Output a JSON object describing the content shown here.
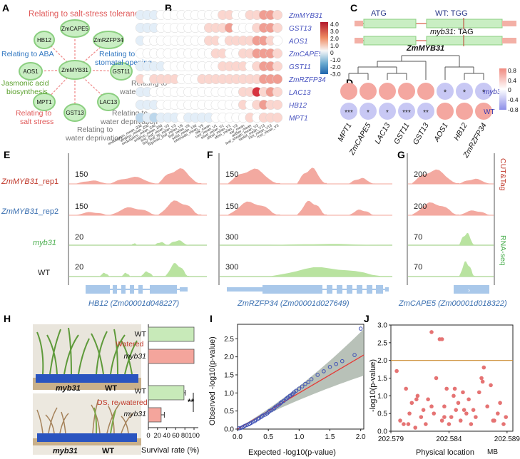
{
  "panels": {
    "A": "A",
    "B": "B",
    "C": "C",
    "D": "D",
    "E": "E",
    "F": "F",
    "G": "G",
    "H": "H",
    "I": "I",
    "J": "J"
  },
  "panelA": {
    "center": "ZmMYB31",
    "nodes": [
      "ZmCAPE5",
      "ZmRZFP34",
      "GST11",
      "LAC13",
      "GST13",
      "MPT1",
      "AOS1",
      "HB12"
    ],
    "labels": {
      "salt_tolerance": "Relating to salt-stress tolerance",
      "aba": "Relating to ABA",
      "aba_stomatal_1": "Relating to ABA,",
      "aba_stomatal_2": "stomatal opening",
      "ja_1": "Jasmonic acid",
      "ja_2": "biosynthesis",
      "water1_1": "Relating to",
      "water1_2": "water deprivation",
      "salt_stress_1": "Relating to",
      "salt_stress_2": "salt stress",
      "water2_1": "Relating to",
      "water2_2": "water deprivation",
      "water3_1": "Relating to",
      "water3_2": "water deprivation"
    }
  },
  "panelB": {
    "genes": [
      "ZmMYB31",
      "GST13",
      "AOS1",
      "ZmCAPE5",
      "GST11",
      "ZmRZFP34",
      "LAC13",
      "HB12",
      "MPT1"
    ],
    "tissues": [
      "endosperm_mean_20d",
      "embryo_mean_20d",
      "endosperm_mean_24d",
      "embryo_mean_24d",
      "first_leaf_mean_V3",
      "first_leaf_tip_mean_V3",
      "Topmost_leaf_mean_V9",
      "leaf_mean_V9",
      "seed_mean_14d",
      "internode_mean_V9",
      "silk_mean",
      "root_mean_V1",
      "seed_mean_V1",
      "shoot_mean_V1",
      "stem_mean_V3",
      "ear_mean",
      "anther_mean",
      "leaf_sheath_mean_V3",
      "tassel_mean_V13",
      "root_mean_V13",
      "root_mean_V3"
    ],
    "legend": {
      "ticks": [
        "4.0",
        "3.0",
        "2.0",
        "1.0",
        "0",
        "-1.0",
        "-2.0",
        "-3.0"
      ]
    }
  },
  "panelC": {
    "atg": "ATG",
    "wt_label": "WT: TGG",
    "mut_label": "myb31",
    "mut_suffix": ": TAG",
    "gene": "ZmMYB31"
  },
  "panelD": {
    "genes": [
      "MPT1",
      "ZmCAPE5",
      "LAC13",
      "GST11",
      "GST13",
      "AOS1",
      "HB12",
      "ZmRZFP34"
    ],
    "row_labels": [
      "myb31",
      "WT"
    ],
    "myb31_marks": [
      "",
      "",
      "",
      "",
      "",
      "*",
      "*",
      "*"
    ],
    "wt_marks": [
      "***",
      "*",
      "*",
      "***",
      "**",
      "",
      "",
      ""
    ],
    "legend_ticks": [
      "0.8",
      "0.4",
      "0",
      "-0.4",
      "-0.8"
    ]
  },
  "tracks": {
    "rows": [
      {
        "label_main": "ZmMYB31",
        "label_suffix": "_rep1",
        "color": "#c0392b"
      },
      {
        "label_main": "ZmMYB31",
        "label_suffix": "_rep2",
        "color": "#3a6fb0"
      },
      {
        "label_main": "myb31",
        "label_suffix": "",
        "color": "#4caf50"
      },
      {
        "label_main": "",
        "label_suffix": "WT",
        "color": "#222"
      }
    ],
    "E": {
      "scales": [
        "150",
        "150",
        "20",
        "20"
      ],
      "gene": "HB12 (Zm00001d048227)"
    },
    "F": {
      "scales": [
        "150",
        "150",
        "300",
        "300"
      ],
      "gene": "ZmRZFP34 (Zm00001d027649)"
    },
    "G": {
      "scales": [
        "200",
        "200",
        "70",
        "70"
      ],
      "gene": "ZmCAPE5 (Zm00001d018322)"
    },
    "side_cut": "CUT&Tag",
    "side_rna": "RNA-seq"
  },
  "panelH": {
    "photo_labels": [
      "myb31",
      "WT",
      "myb31",
      "WT"
    ],
    "bar_labels": [
      "WT",
      "myb31",
      "WT",
      "myb31"
    ],
    "group_labels": [
      "Watered",
      "DS, re-watered"
    ],
    "xlabel": "Survival rate (%)",
    "xticks": [
      "0",
      "20",
      "40",
      "60",
      "80",
      "100"
    ],
    "sig": "**"
  },
  "chart_data": [
    {
      "type": "bar",
      "title": "",
      "categories": [
        "WT (Watered)",
        "myb31 (Watered)",
        "WT (DS, re-watered)",
        "myb31 (DS, re-watered)"
      ],
      "values": [
        100,
        100,
        78,
        28
      ],
      "errors": [
        0,
        0,
        3,
        7
      ],
      "xlabel": "Survival rate (%)",
      "ylabel": "",
      "xlim": [
        0,
        100
      ]
    },
    {
      "type": "scatter",
      "title": "",
      "xlabel": "Expected -log10(p-value)",
      "ylabel": "Observed -log10(p-value)",
      "xlim": [
        0,
        2.05
      ],
      "ylim": [
        0,
        2.9
      ],
      "xticks": [
        "0.0",
        "0.5",
        "1.0",
        "1.5",
        "2.0"
      ],
      "yticks": [
        "0.0",
        "0.5",
        "1.0",
        "1.5",
        "2.0",
        "2.5"
      ],
      "expected": [
        0.02,
        0.05,
        0.08,
        0.1,
        0.12,
        0.15,
        0.18,
        0.2,
        0.22,
        0.25,
        0.28,
        0.3,
        0.33,
        0.35,
        0.38,
        0.4,
        0.42,
        0.45,
        0.48,
        0.5,
        0.52,
        0.55,
        0.58,
        0.6,
        0.62,
        0.65,
        0.68,
        0.7,
        0.72,
        0.75,
        0.78,
        0.8,
        0.82,
        0.85,
        0.88,
        0.9,
        0.92,
        0.95,
        1.0,
        1.05,
        1.1,
        1.15,
        1.2,
        1.3,
        1.4,
        1.5,
        1.6,
        1.7,
        1.9,
        2.0
      ],
      "observed": [
        0.02,
        0.03,
        0.05,
        0.07,
        0.09,
        0.11,
        0.13,
        0.15,
        0.17,
        0.2,
        0.22,
        0.25,
        0.28,
        0.3,
        0.33,
        0.36,
        0.38,
        0.4,
        0.43,
        0.46,
        0.5,
        0.52,
        0.55,
        0.58,
        0.62,
        0.65,
        0.68,
        0.72,
        0.75,
        0.78,
        0.82,
        0.85,
        0.88,
        0.92,
        0.95,
        0.98,
        1.02,
        1.06,
        1.12,
        1.18,
        1.25,
        1.3,
        1.38,
        1.5,
        1.6,
        1.72,
        1.8,
        1.88,
        2.05,
        2.78
      ],
      "fit_line": {
        "x": [
          0,
          2.05
        ],
        "y": [
          0,
          2.05
        ]
      }
    },
    {
      "type": "scatter",
      "title": "",
      "xlabel": "Physical location",
      "xunit": "MB",
      "ylabel": "-log10(p-value)",
      "xlim": [
        202.579,
        202.5895
      ],
      "ylim": [
        0,
        3.0
      ],
      "xticks": [
        "202.579",
        "202.584",
        "202.589"
      ],
      "yticks": [
        "0.0",
        "0.5",
        "1.0",
        "1.5",
        "2.0",
        "2.5",
        "3.0"
      ],
      "threshold": 2.0,
      "x": [
        202.5795,
        202.5798,
        202.5801,
        202.5803,
        202.5806,
        202.5808,
        202.5811,
        202.5813,
        202.5816,
        202.5818,
        202.582,
        202.5822,
        202.5825,
        202.5827,
        202.5829,
        202.5832,
        202.5834,
        202.5836,
        202.5838,
        202.584,
        202.5842,
        202.5844,
        202.5846,
        202.5848,
        202.585,
        202.5852,
        202.5855,
        202.5857,
        202.5859,
        202.5861,
        202.5863,
        202.5866,
        202.5868,
        202.587,
        202.5873,
        202.5876,
        202.5879,
        202.5882,
        202.5884,
        202.5887,
        202.5889,
        202.5834,
        202.5836,
        202.5812,
        202.5869,
        202.5853,
        202.5825,
        202.5805,
        202.5845,
        202.5878
      ],
      "y": [
        1.7,
        0.3,
        0.2,
        1.2,
        0.5,
        0.8,
        0.1,
        1.0,
        0.4,
        0.6,
        0.2,
        0.9,
        2.8,
        0.5,
        1.5,
        2.6,
        0.3,
        0.7,
        1.2,
        0.2,
        0.4,
        1.0,
        0.6,
        0.8,
        0.3,
        1.1,
        0.5,
        0.9,
        0.2,
        0.6,
        0.4,
        1.1,
        1.5,
        1.8,
        0.7,
        1.3,
        0.3,
        0.5,
        0.8,
        0.2,
        0.4,
        2.6,
        0.4,
        0.9,
        1.4,
        0.6,
        0.7,
        0.2,
        1.2,
        0.3
      ]
    }
  ]
}
